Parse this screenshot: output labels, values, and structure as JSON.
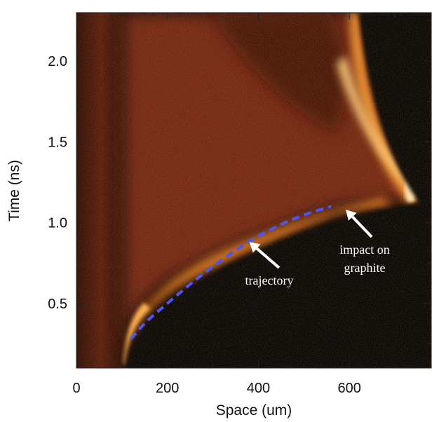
{
  "chart_data": {
    "type": "heatmap",
    "title": "",
    "xlabel": "Space (um)",
    "ylabel": "Time (ns)",
    "xlim": [
      0,
      780
    ],
    "ylim": [
      0.1,
      2.3
    ],
    "x_ticks": [
      0,
      200,
      400,
      600
    ],
    "x_tick_labels": [
      "0",
      "200",
      "400",
      "600"
    ],
    "x_minor_ticks": [
      100,
      300,
      500,
      700
    ],
    "y_ticks": [
      0.5,
      1.0,
      1.5,
      2.0
    ],
    "y_tick_labels": [
      "0.5",
      "1.0",
      "1.5",
      "2.0"
    ],
    "y_minor_ticks": [
      0.25,
      0.75,
      1.25,
      1.75,
      2.25
    ],
    "grid": false,
    "colormap": [
      "#000000",
      "#3a0a02",
      "#7a2408",
      "#c4520f",
      "#f5a030",
      "#fff0c8"
    ],
    "trajectory": {
      "x": [
        120,
        150,
        200,
        250,
        300,
        350,
        400,
        450,
        500,
        560
      ],
      "y": [
        0.28,
        0.38,
        0.5,
        0.62,
        0.73,
        0.83,
        0.92,
        0.99,
        1.05,
        1.1
      ],
      "color": "#4a55ff",
      "style": "dashed"
    },
    "annotations": [
      {
        "lines": [
          "trajectory"
        ],
        "arrow_tip": [
          380,
          0.88
        ]
      },
      {
        "lines": [
          "impact on",
          "graphite"
        ],
        "arrow_tip": [
          592,
          1.08
        ]
      }
    ]
  }
}
